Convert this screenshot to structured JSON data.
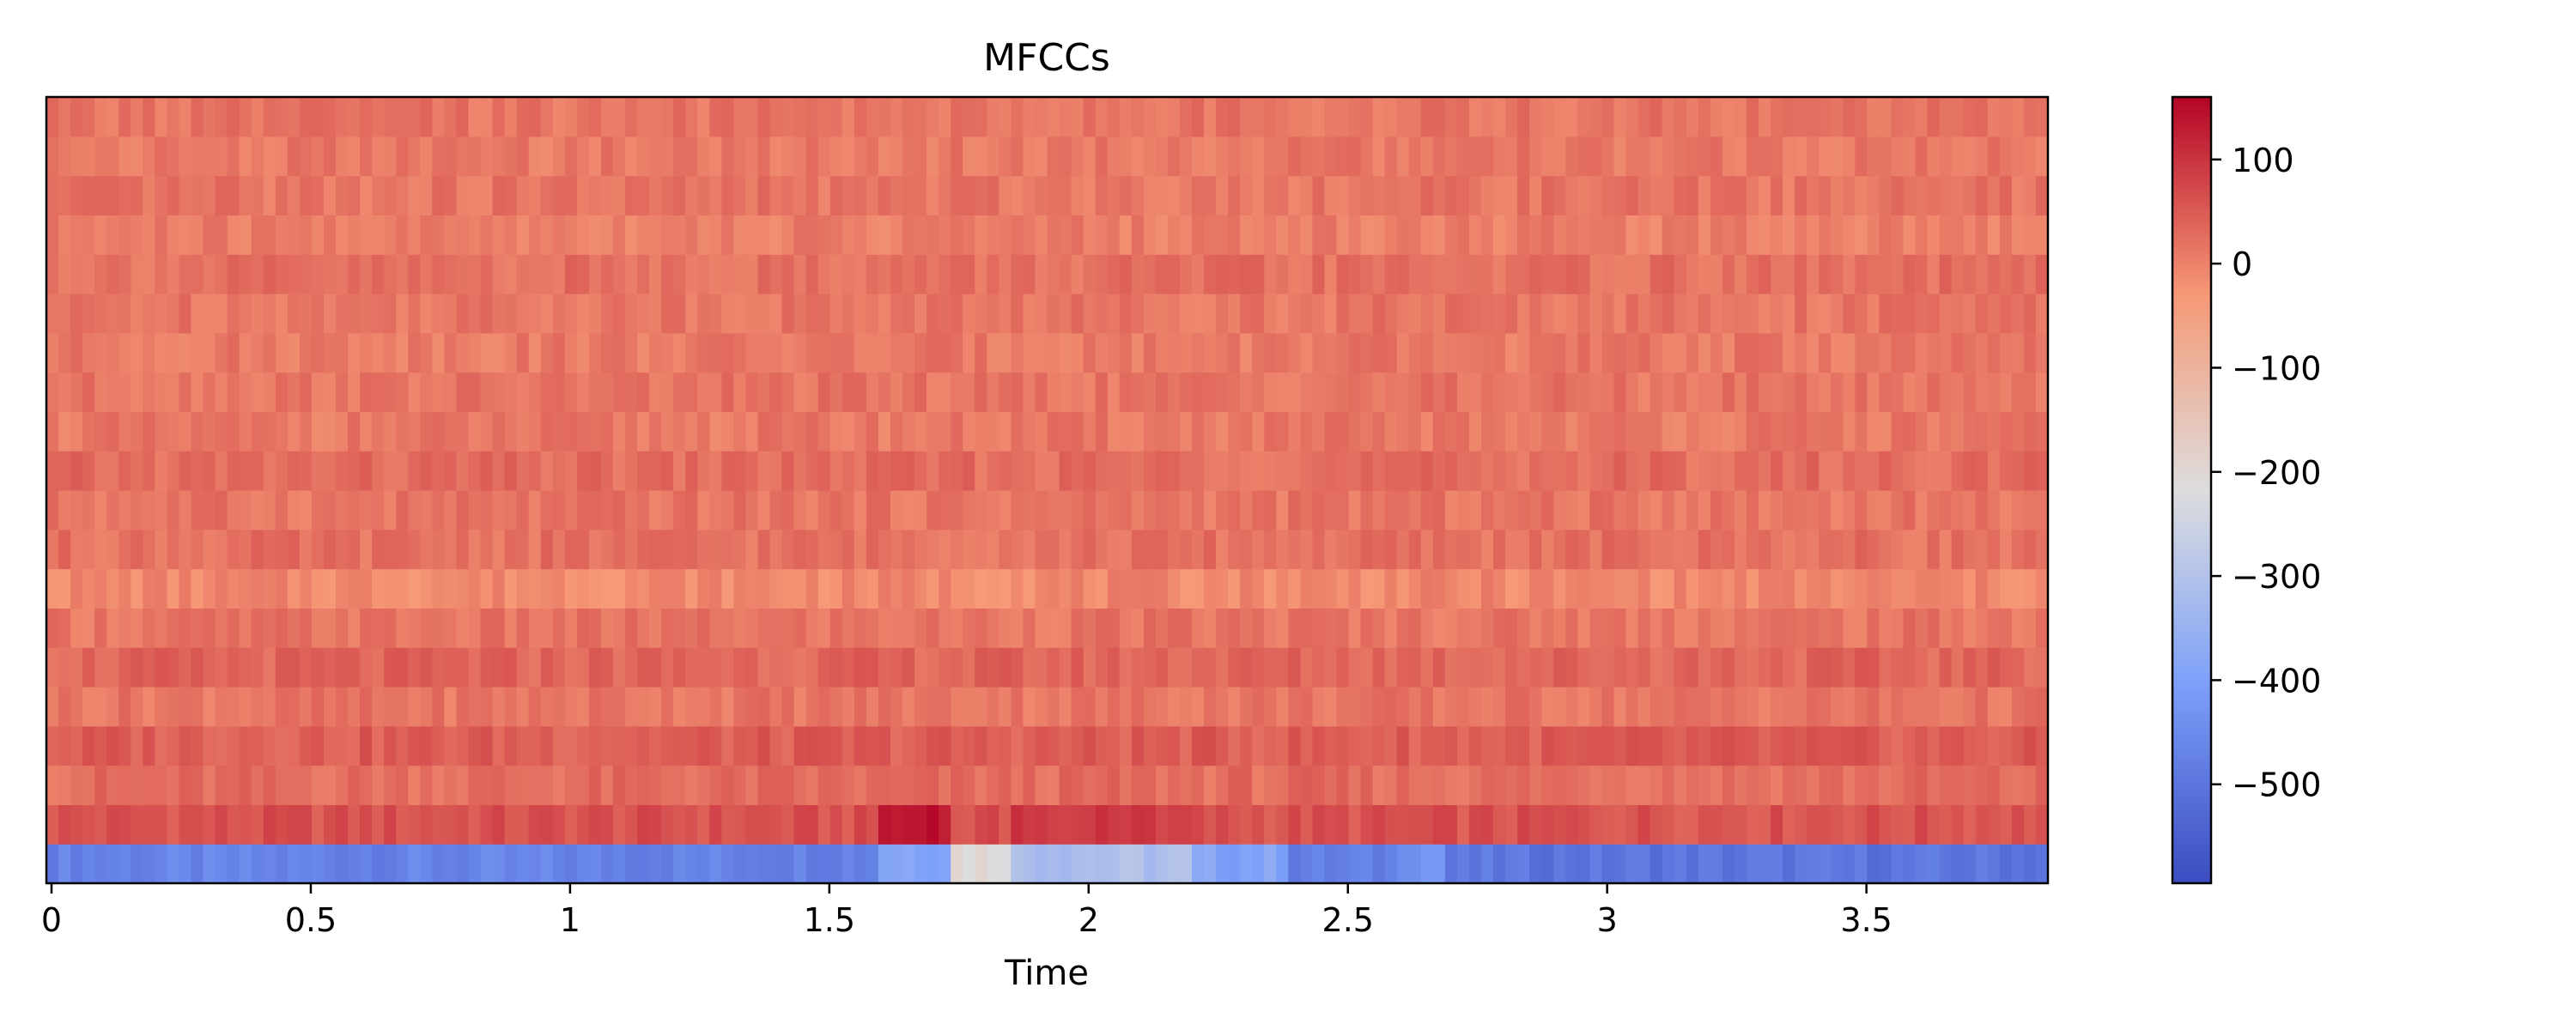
{
  "chart_data": {
    "type": "heatmap",
    "title": "MFCCs",
    "xlabel": "Time",
    "ylabel": "",
    "xlim": [
      0,
      3.85
    ],
    "x_ticks": [
      0,
      0.5,
      1,
      1.5,
      2,
      2.5,
      3,
      3.5
    ],
    "x_tick_labels": [
      "0",
      "0.5",
      "1",
      "1.5",
      "2",
      "2.5",
      "3",
      "3.5"
    ],
    "n_coefficients": 20,
    "n_frames": 166,
    "colormap": "coolwarm",
    "colorbar": {
      "vmin": -595,
      "vmax": 160,
      "ticks": [
        100,
        0,
        -100,
        -200,
        -300,
        -400,
        -500
      ],
      "tick_labels": [
        "100",
        "0",
        "−100",
        "−200",
        "−300",
        "−400",
        "−500"
      ]
    },
    "coefficient_base_values": [
      -460,
      60,
      25,
      45,
      15,
      35,
      15,
      -10,
      20,
      15,
      25,
      10,
      15,
      10,
      15,
      20,
      5,
      15,
      10,
      15
    ],
    "events": [
      {
        "t0": 0.0,
        "t1": 1.6,
        "mfcc0": -470
      },
      {
        "t0": 1.6,
        "t1": 1.75,
        "mfcc0": -380,
        "mfcc1": 155
      },
      {
        "t0": 1.75,
        "t1": 1.85,
        "mfcc0": -200
      },
      {
        "t0": 1.85,
        "t1": 2.2,
        "mfcc0": -310,
        "mfcc1": 110
      },
      {
        "t0": 2.2,
        "t1": 2.4,
        "mfcc0": -390
      },
      {
        "t0": 2.4,
        "t1": 2.6,
        "mfcc0": -480
      },
      {
        "t0": 2.6,
        "t1": 2.7,
        "mfcc0": -420
      },
      {
        "t0": 2.7,
        "t1": 3.85,
        "mfcc0": -500
      }
    ]
  }
}
